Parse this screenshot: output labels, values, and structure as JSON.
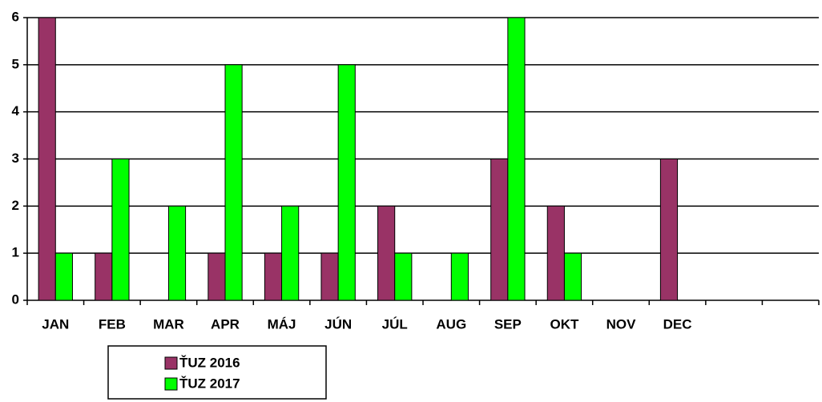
{
  "chart_data": {
    "type": "bar",
    "categories": [
      "JAN",
      "FEB",
      "MAR",
      "APR",
      "MÁJ",
      "JÚN",
      "JÚL",
      "AUG",
      "SEP",
      "OKT",
      "NOV",
      "DEC",
      null,
      null
    ],
    "series": [
      {
        "name": "ŤUZ 2016",
        "color": "#993366",
        "values": [
          6,
          1,
          0,
          1,
          1,
          1,
          2,
          0,
          3,
          2,
          0,
          3,
          null,
          null
        ]
      },
      {
        "name": "ŤUZ 2017",
        "color": "#00ff00",
        "values": [
          1,
          3,
          2,
          5,
          2,
          5,
          1,
          1,
          6,
          1,
          0,
          0,
          null,
          null
        ]
      }
    ],
    "ylim": [
      0,
      6
    ],
    "yticks": [
      0,
      1,
      2,
      3,
      4,
      5,
      6
    ],
    "grid": true
  }
}
